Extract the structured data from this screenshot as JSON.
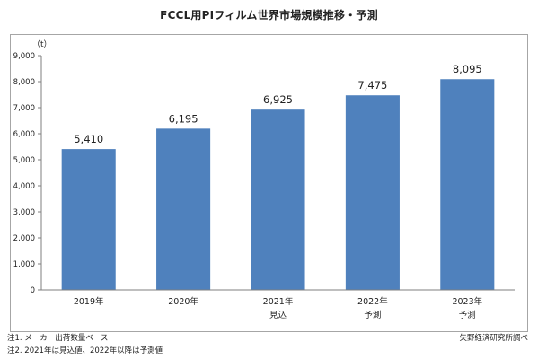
{
  "chart_data": {
    "type": "bar",
    "title": "FCCL用PIフィルム世界市場規模推移・予測",
    "ylabel": "（t）",
    "xlabel": "",
    "categories": [
      "2019年",
      "2020年",
      "2021年",
      "2022年",
      "2023年"
    ],
    "category_sublabels": [
      "",
      "",
      "見込",
      "予測",
      "予測"
    ],
    "values": [
      5410,
      6195,
      6925,
      7475,
      8095
    ],
    "value_labels": [
      "5,410",
      "6,195",
      "6,925",
      "7,475",
      "8,095"
    ],
    "ylim": [
      0,
      9000
    ],
    "yticks": [
      0,
      1000,
      2000,
      3000,
      4000,
      5000,
      6000,
      7000,
      8000,
      9000
    ],
    "ytick_labels": [
      "0",
      "1,000",
      "2,000",
      "3,000",
      "4,000",
      "5,000",
      "6,000",
      "7,000",
      "8,000",
      "9,000"
    ],
    "grid": false,
    "bar_color": "#4f81bd"
  },
  "notes": [
    "注1.  メーカー出荷数量ベース",
    "注2.  2021年は見込値、2022年以降は予測値"
  ],
  "source": "矢野経済研究所調べ"
}
